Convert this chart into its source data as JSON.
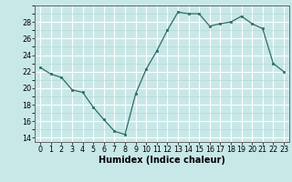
{
  "x": [
    0,
    1,
    2,
    3,
    4,
    5,
    6,
    7,
    8,
    9,
    10,
    11,
    12,
    13,
    14,
    15,
    16,
    17,
    18,
    19,
    20,
    21,
    22,
    23
  ],
  "y": [
    22.5,
    21.7,
    21.3,
    19.8,
    19.5,
    17.7,
    16.2,
    14.8,
    14.4,
    19.3,
    22.3,
    24.5,
    27.0,
    29.2,
    29.0,
    29.0,
    27.5,
    27.8,
    28.0,
    28.7,
    27.8,
    27.2,
    23.0,
    22.0
  ],
  "line_color": "#2d6e63",
  "marker": "s",
  "marker_size": 2.0,
  "bg_color": "#c8e8e8",
  "grid_major_color": "#ffffff",
  "grid_minor_color": "#b8d8d8",
  "xlabel": "Humidex (Indice chaleur)",
  "xlim": [
    -0.5,
    23.5
  ],
  "ylim": [
    13.5,
    30.0
  ],
  "yticks": [
    14,
    16,
    18,
    20,
    22,
    24,
    26,
    28
  ],
  "xticks": [
    0,
    1,
    2,
    3,
    4,
    5,
    6,
    7,
    8,
    9,
    10,
    11,
    12,
    13,
    14,
    15,
    16,
    17,
    18,
    19,
    20,
    21,
    22,
    23
  ],
  "tick_fontsize": 5.8,
  "label_fontsize": 7.0
}
